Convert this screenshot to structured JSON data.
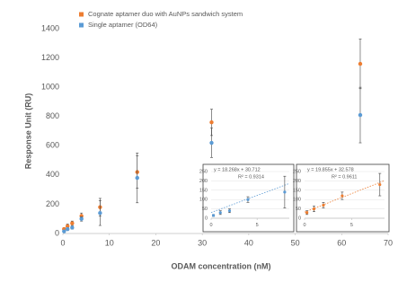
{
  "chart_data": [
    {
      "type": "scatter",
      "x_label": "ODAM concentration (nM)",
      "y_label": "Response Unit (RU)",
      "x": [
        0.25,
        1,
        2,
        4,
        8,
        16,
        32,
        64
      ],
      "series": [
        {
          "name": "Cognate aptamer duo with AuNPs sandwich system",
          "color": "#ed7d31",
          "values": [
            30,
            50,
            70,
            120,
            180,
            420,
            760,
            1160
          ],
          "errors": [
            10,
            15,
            15,
            20,
            60,
            110,
            90,
            170
          ]
        },
        {
          "name": "Single aptamer (OD64)",
          "color": "#5b9bd5",
          "values": [
            15,
            30,
            40,
            100,
            140,
            380,
            620,
            810
          ],
          "errors": [
            5,
            10,
            10,
            15,
            85,
            170,
            100,
            190
          ]
        }
      ],
      "xlim": [
        0,
        70
      ],
      "xticks": [
        0,
        10,
        20,
        30,
        40,
        50,
        60,
        70
      ],
      "ylim": [
        0,
        1400
      ],
      "yticks": [
        0,
        200,
        400,
        600,
        800,
        1000,
        1200,
        1400
      ],
      "legend": "top-left"
    },
    {
      "type": "scatter",
      "x": [
        0.25,
        1,
        2,
        4,
        8
      ],
      "series": [
        {
          "color": "#5b9bd5",
          "values": [
            15,
            30,
            40,
            100,
            140
          ],
          "errors": [
            5,
            10,
            10,
            15,
            85
          ],
          "trend": {
            "slope": 18.268,
            "intercept": 30.712
          },
          "equation": "y = 18.268x + 30.712",
          "r2": "R² = 0.9314"
        }
      ],
      "xlim": [
        0,
        8.5
      ],
      "xticks": [
        0,
        5
      ],
      "ylim": [
        0,
        250
      ],
      "yticks": [
        0,
        50,
        100,
        150,
        200,
        250
      ]
    },
    {
      "type": "scatter",
      "x": [
        0.25,
        1,
        2,
        4,
        8
      ],
      "series": [
        {
          "color": "#ed7d31",
          "values": [
            30,
            50,
            70,
            120,
            180
          ],
          "errors": [
            10,
            15,
            15,
            20,
            60
          ],
          "trend": {
            "slope": 19.855,
            "intercept": 32.578
          },
          "equation": "y = 19.855x + 32.578",
          "r2": "R² = 0.9611"
        }
      ],
      "xlim": [
        0,
        8.5
      ],
      "xticks": [
        0,
        5
      ],
      "ylim": [
        0,
        250
      ],
      "yticks": [
        0,
        50,
        100,
        150,
        200,
        250
      ]
    }
  ]
}
